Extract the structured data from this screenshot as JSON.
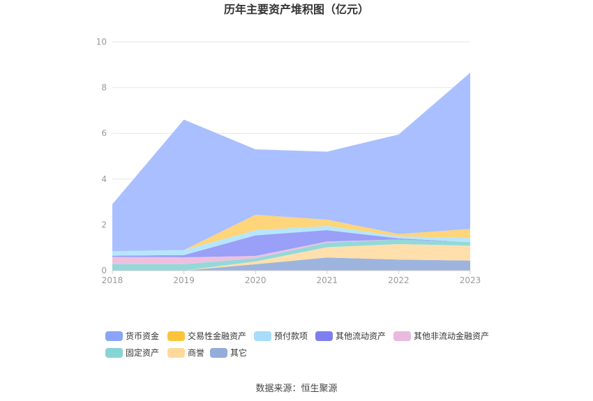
{
  "chart_data": {
    "type": "area",
    "title": "历年主要资产堆积图（亿元）",
    "x": [
      "2018",
      "2019",
      "2020",
      "2021",
      "2022",
      "2023"
    ],
    "ylim": [
      0,
      10
    ],
    "yticks": [
      "0",
      "2",
      "4",
      "6",
      "8",
      "10"
    ],
    "grid": true,
    "legend_position": "bottom",
    "stacked": true,
    "series": [
      {
        "name": "其它",
        "color": "#9db4de",
        "values": [
          0.0,
          0.0,
          0.28,
          0.57,
          0.48,
          0.44
        ]
      },
      {
        "name": "商誉",
        "color": "#ffdfac",
        "values": [
          0.0,
          0.0,
          0.12,
          0.45,
          0.68,
          0.65
        ]
      },
      {
        "name": "固定资产",
        "color": "#93d9d9",
        "values": [
          0.28,
          0.28,
          0.14,
          0.2,
          0.2,
          0.15
        ]
      },
      {
        "name": "其他非流动金融资产",
        "color": "#eec0e0",
        "values": [
          0.32,
          0.3,
          0.1,
          0.05,
          0.0,
          0.0
        ]
      },
      {
        "name": "其他流动资产",
        "color": "#9a9ff8",
        "values": [
          0.05,
          0.1,
          0.9,
          0.5,
          0.05,
          0.0
        ]
      },
      {
        "name": "预付款项",
        "color": "#b6e6fd",
        "values": [
          0.2,
          0.22,
          0.22,
          0.18,
          0.09,
          0.18
        ]
      },
      {
        "name": "交易性金融资产",
        "color": "#fed57a",
        "values": [
          0.0,
          0.0,
          0.68,
          0.28,
          0.1,
          0.4
        ]
      },
      {
        "name": "货币资金",
        "color": "#a9bfff",
        "values": [
          2.05,
          5.7,
          2.86,
          2.97,
          4.35,
          6.83
        ]
      }
    ]
  },
  "legend": {
    "colors": {
      "货币资金": "#8aa4f8",
      "交易性金融资产": "#fcc43a",
      "预付款项": "#a7dcfb",
      "其他流动资产": "#7e7ef1",
      "其他非流动金融资产": "#e9b9de",
      "固定资产": "#88d4d4",
      "商誉": "#ffd89b",
      "其它": "#93acda"
    },
    "order": [
      "货币资金",
      "交易性金融资产",
      "预付款项",
      "其他流动资产",
      "其他非流动金融资产",
      "固定资产",
      "商誉",
      "其它"
    ]
  },
  "source": "数据来源：恒生聚源"
}
